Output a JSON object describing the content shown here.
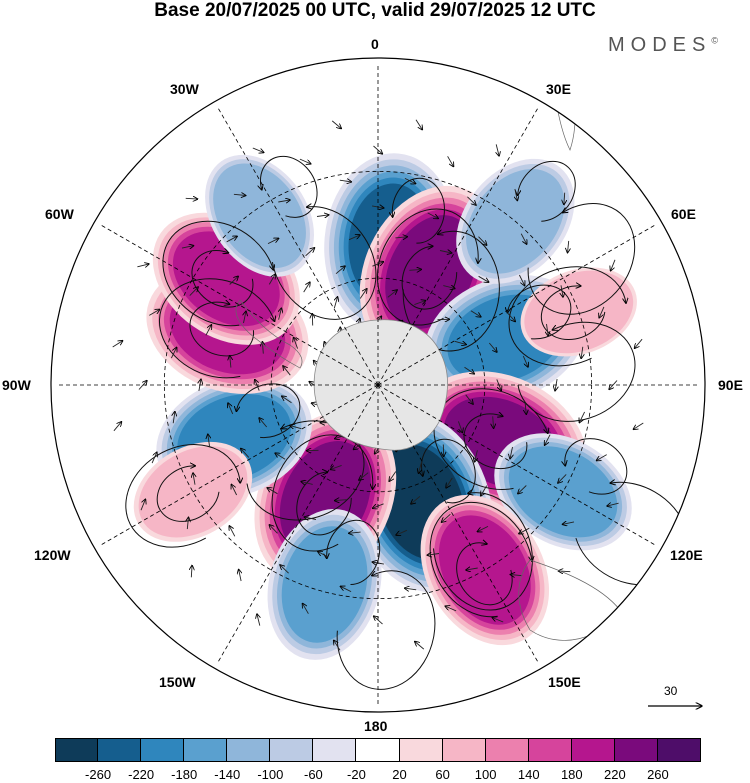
{
  "title": "Base 20/07/2025 00 UTC, valid 29/07/2025 12 UTC",
  "brand": "MODES",
  "brand_mark": "©",
  "longitude_labels": {
    "top": "0",
    "top_right": "30E",
    "right_upper": "60E",
    "right": "90E",
    "right_lower": "120E",
    "bottom_right": "150E",
    "bottom": "180",
    "bottom_left": "150W",
    "left_lower": "120W",
    "left": "90W",
    "left_upper": "60W",
    "top_left": "30W"
  },
  "reference_vector": {
    "label": "30"
  },
  "colorbar": {
    "colors": [
      "#0e3b59",
      "#155e8e",
      "#2f86bd",
      "#5aa0cf",
      "#8fb6da",
      "#bccbe4",
      "#e2e2f0",
      "#ffffff",
      "#f9d9dd",
      "#f6b6c6",
      "#ec80ae",
      "#d6449c",
      "#b5168e",
      "#7a0a7c",
      "#4e0d69"
    ],
    "ticks": [
      "-260",
      "-220",
      "-180",
      "-140",
      "-100",
      "-60",
      "-20",
      "20",
      "60",
      "100",
      "140",
      "180",
      "220",
      "260"
    ]
  },
  "anomaly_centers": [
    {
      "lon": 5,
      "lat": -50,
      "value": -240
    },
    {
      "lon": 25,
      "lat": -55,
      "value": 240
    },
    {
      "lon": 70,
      "lat": -52,
      "value": -200
    },
    {
      "lon": 115,
      "lat": -52,
      "value": 240
    },
    {
      "lon": 160,
      "lat": -55,
      "value": -260
    },
    {
      "lon": -155,
      "lat": -55,
      "value": 240
    },
    {
      "lon": -110,
      "lat": -47,
      "value": -180
    },
    {
      "lon": -70,
      "lat": -45,
      "value": 200
    },
    {
      "lon": -55,
      "lat": -38,
      "value": 180
    },
    {
      "lon": -35,
      "lat": -32,
      "value": -100
    },
    {
      "lon": 40,
      "lat": -30,
      "value": -120
    },
    {
      "lon": 120,
      "lat": -30,
      "value": -140
    },
    {
      "lon": 150,
      "lat": -30,
      "value": 180
    },
    {
      "lon": -165,
      "lat": -32,
      "value": -160
    },
    {
      "lon": -120,
      "lat": -30,
      "value": 80
    },
    {
      "lon": 70,
      "lat": -30,
      "value": 60
    }
  ]
}
